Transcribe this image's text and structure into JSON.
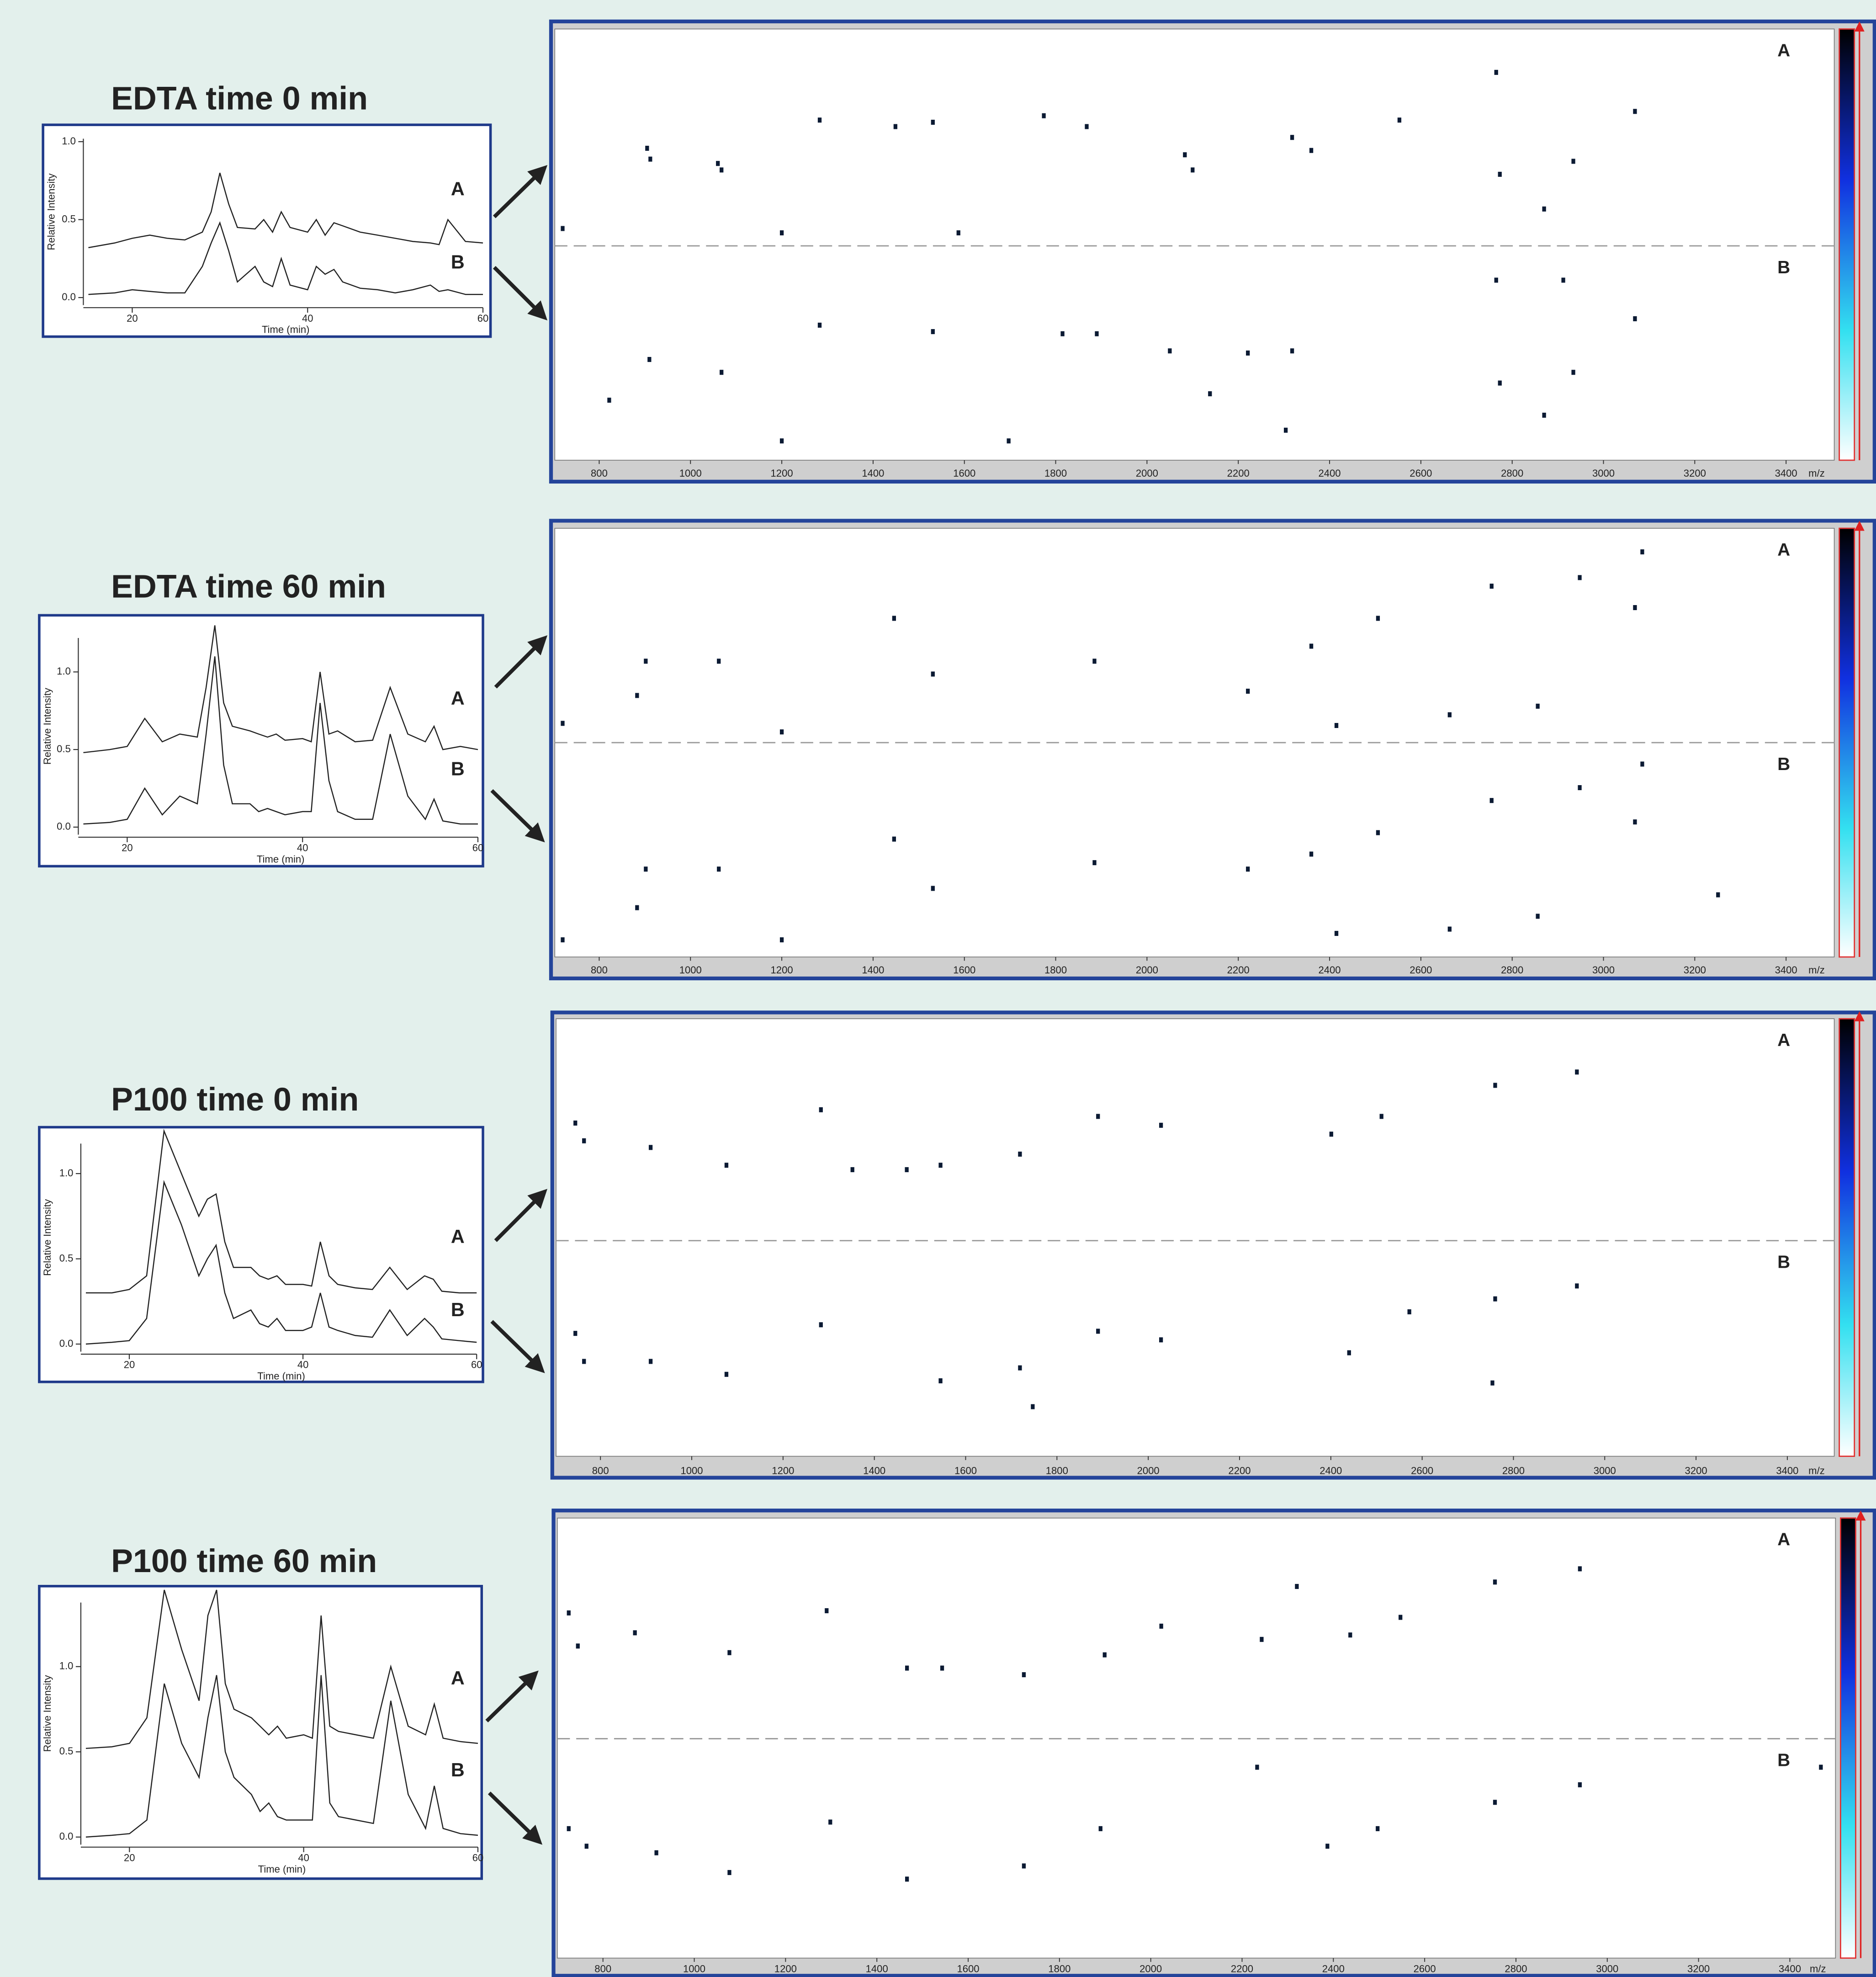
{
  "chart_data": [
    {
      "type": "line",
      "title": "EDTA time 0 min",
      "xlabel": "Time (min)",
      "ylabel": "Relative Intensity",
      "x": [
        15,
        18,
        20,
        22,
        24,
        26,
        28,
        29,
        30,
        31,
        32,
        34,
        35,
        36,
        37,
        38,
        40,
        41,
        42,
        43,
        44,
        46,
        48,
        50,
        52,
        54,
        55,
        56,
        58,
        60
      ],
      "xlim": [
        15,
        60
      ],
      "xticks": [
        20,
        40,
        60
      ],
      "ylim": [
        0,
        1.1
      ],
      "yticks": [
        {
          "value": 0,
          "label": "0.0"
        },
        0.5,
        {
          "value": 1,
          "label": "1.0"
        }
      ],
      "series": [
        {
          "name": "A",
          "color": "#222222",
          "values": [
            0.32,
            0.35,
            0.38,
            0.4,
            0.38,
            0.37,
            0.42,
            0.55,
            0.8,
            0.6,
            0.45,
            0.44,
            0.5,
            0.42,
            0.55,
            0.45,
            0.42,
            0.5,
            0.4,
            0.48,
            0.46,
            0.42,
            0.4,
            0.38,
            0.36,
            0.35,
            0.34,
            0.5,
            0.36,
            0.35
          ]
        },
        {
          "name": "B",
          "color": "#222222",
          "values": [
            0.02,
            0.03,
            0.05,
            0.04,
            0.03,
            0.03,
            0.2,
            0.35,
            0.48,
            0.3,
            0.1,
            0.2,
            0.1,
            0.07,
            0.25,
            0.08,
            0.05,
            0.2,
            0.15,
            0.18,
            0.1,
            0.06,
            0.05,
            0.03,
            0.05,
            0.08,
            0.04,
            0.05,
            0.02,
            0.02
          ]
        }
      ]
    },
    {
      "type": "scatter",
      "xlabel": "m/z",
      "xlim": [
        700,
        3500
      ],
      "xticks": [
        800,
        1000,
        1200,
        1400,
        1600,
        1800,
        2000,
        2200,
        2400,
        2600,
        2800,
        3000,
        3200,
        3400
      ],
      "ylim": [
        0,
        1
      ],
      "series": [
        {
          "name": "A",
          "color": "#0b1a33",
          "x": [
            720,
            905,
            912,
            1060,
            1068,
            1283,
            1449,
            1531,
            1774,
            1868,
            2083,
            2100,
            2318,
            2360,
            2553,
            2765,
            2773,
            2870,
            2934,
            3069,
            1200,
            1587
          ],
          "values": [
            0.08,
            0.45,
            0.4,
            0.38,
            0.35,
            0.58,
            0.55,
            0.57,
            0.6,
            0.55,
            0.42,
            0.35,
            0.5,
            0.44,
            0.58,
            0.8,
            0.33,
            0.17,
            0.39,
            0.62,
            0.06,
            0.06
          ]
        },
        {
          "name": "B",
          "color": "#0b1a33",
          "x": [
            910,
            1068,
            1283,
            1531,
            1815,
            1890,
            2050,
            2221,
            2318,
            2765,
            2912,
            3069,
            2934,
            2773,
            2870,
            1200,
            1697,
            2304,
            2138,
            822
          ],
          "values": [
            0.47,
            0.41,
            0.63,
            0.6,
            0.59,
            0.59,
            0.51,
            0.5,
            0.51,
            0.84,
            0.84,
            0.66,
            0.41,
            0.36,
            0.21,
            0.09,
            0.09,
            0.14,
            0.31,
            0.28
          ]
        }
      ]
    },
    {
      "type": "line",
      "title": "EDTA time 60 min",
      "xlabel": "Time (min)",
      "ylabel": "Relative Intensity",
      "x": [
        15,
        18,
        20,
        22,
        24,
        26,
        28,
        29,
        30,
        31,
        32,
        34,
        35,
        36,
        37,
        38,
        40,
        41,
        42,
        43,
        44,
        46,
        48,
        50,
        52,
        54,
        55,
        56,
        58,
        60
      ],
      "xlim": [
        15,
        60
      ],
      "xticks": [
        20,
        40,
        60
      ],
      "ylim": [
        0,
        1.3
      ],
      "yticks": [
        {
          "value": 0,
          "label": "0.0"
        },
        0.5,
        {
          "value": 1,
          "label": "1.0"
        }
      ],
      "series": [
        {
          "name": "A",
          "color": "#222222",
          "values": [
            0.48,
            0.5,
            0.52,
            0.7,
            0.55,
            0.6,
            0.58,
            0.9,
            1.3,
            0.8,
            0.65,
            0.62,
            0.6,
            0.58,
            0.6,
            0.56,
            0.57,
            0.55,
            1.0,
            0.6,
            0.62,
            0.55,
            0.56,
            0.9,
            0.6,
            0.55,
            0.65,
            0.5,
            0.52,
            0.5
          ]
        },
        {
          "name": "B",
          "color": "#222222",
          "values": [
            0.02,
            0.03,
            0.05,
            0.25,
            0.08,
            0.2,
            0.15,
            0.6,
            1.1,
            0.4,
            0.15,
            0.15,
            0.1,
            0.12,
            0.1,
            0.08,
            0.1,
            0.1,
            0.8,
            0.3,
            0.1,
            0.05,
            0.05,
            0.6,
            0.2,
            0.05,
            0.18,
            0.04,
            0.02,
            0.02
          ]
        }
      ]
    },
    {
      "type": "scatter",
      "xlabel": "m/z",
      "xlim": [
        700,
        3500
      ],
      "xticks": [
        800,
        1000,
        1200,
        1400,
        1600,
        1800,
        2000,
        2200,
        2400,
        2600,
        2800,
        3000,
        3200,
        3400
      ],
      "ylim": [
        0,
        1
      ],
      "series": [
        {
          "name": "A",
          "color": "#0b1a33",
          "x": [
            902,
            1062,
            1446,
            1531,
            2755,
            2948,
            3069,
            3085,
            2360,
            2506,
            2663,
            2856,
            883,
            1885,
            2221,
            2415,
            1200,
            720
          ],
          "values": [
            0.38,
            0.38,
            0.58,
            0.32,
            0.73,
            0.77,
            0.63,
            0.89,
            0.45,
            0.58,
            0.13,
            0.17,
            0.22,
            0.38,
            0.24,
            0.08,
            0.05,
            0.09
          ]
        },
        {
          "name": "B",
          "color": "#0b1a33",
          "x": [
            902,
            1062,
            1446,
            1531,
            2755,
            2948,
            3069,
            3085,
            2360,
            2506,
            2663,
            2856,
            883,
            1885,
            2221,
            2415,
            3251,
            1200,
            720
          ],
          "values": [
            0.41,
            0.41,
            0.55,
            0.32,
            0.73,
            0.79,
            0.63,
            0.9,
            0.48,
            0.58,
            0.13,
            0.19,
            0.23,
            0.44,
            0.41,
            0.11,
            0.29,
            0.08,
            0.08
          ]
        }
      ]
    },
    {
      "type": "line",
      "title": "P100 time 0 min",
      "xlabel": "Time (min)",
      "ylabel": "Relative Intensity",
      "x": [
        15,
        18,
        20,
        22,
        24,
        26,
        28,
        29,
        30,
        31,
        32,
        34,
        35,
        36,
        37,
        38,
        40,
        41,
        42,
        43,
        44,
        46,
        48,
        50,
        52,
        54,
        55,
        56,
        58,
        60
      ],
      "xlim": [
        15,
        60
      ],
      "xticks": [
        20,
        40,
        60
      ],
      "ylim": [
        0,
        1.25
      ],
      "yticks": [
        {
          "value": 0,
          "label": "0.0"
        },
        0.5,
        {
          "value": 1,
          "label": "1.0"
        }
      ],
      "series": [
        {
          "name": "A",
          "color": "#222222",
          "values": [
            0.3,
            0.3,
            0.32,
            0.4,
            1.25,
            1.0,
            0.75,
            0.85,
            0.88,
            0.6,
            0.45,
            0.45,
            0.4,
            0.38,
            0.4,
            0.35,
            0.35,
            0.34,
            0.6,
            0.4,
            0.35,
            0.33,
            0.32,
            0.45,
            0.32,
            0.4,
            0.38,
            0.31,
            0.3,
            0.3
          ]
        },
        {
          "name": "B",
          "color": "#222222",
          "values": [
            0,
            0.01,
            0.02,
            0.15,
            0.95,
            0.7,
            0.4,
            0.5,
            0.58,
            0.3,
            0.15,
            0.2,
            0.12,
            0.1,
            0.15,
            0.08,
            0.08,
            0.1,
            0.3,
            0.1,
            0.08,
            0.05,
            0.04,
            0.2,
            0.05,
            0.15,
            0.1,
            0.03,
            0.02,
            0.01
          ]
        }
      ]
    },
    {
      "type": "scatter",
      "xlabel": "m/z",
      "xlim": [
        700,
        3500
      ],
      "xticks": [
        800,
        1000,
        1200,
        1400,
        1600,
        1800,
        2000,
        2200,
        2400,
        2600,
        2800,
        3000,
        3200,
        3400
      ],
      "ylim": [
        0,
        1
      ],
      "series": [
        {
          "name": "A",
          "color": "#0b1a33",
          "x": [
            745,
            764,
            910,
            1076,
            1283,
            1545,
            1719,
            1890,
            2028,
            2401,
            2511,
            2760,
            2939,
            1352,
            1471
          ],
          "values": [
            0.53,
            0.45,
            0.42,
            0.34,
            0.59,
            0.34,
            0.39,
            0.56,
            0.52,
            0.48,
            0.56,
            0.7,
            0.76,
            0.32,
            0.32
          ]
        },
        {
          "name": "B",
          "color": "#0b1a33",
          "x": [
            745,
            764,
            910,
            1076,
            1283,
            1545,
            1719,
            1890,
            2028,
            2440,
            2572,
            2760,
            2939,
            2754,
            1747
          ],
          "values": [
            0.57,
            0.44,
            0.44,
            0.38,
            0.61,
            0.35,
            0.41,
            0.58,
            0.54,
            0.48,
            0.67,
            0.73,
            0.79,
            0.34,
            0.23
          ]
        }
      ]
    },
    {
      "type": "line",
      "title": "P100 time 60 min",
      "xlabel": "Time (min)",
      "ylabel": "Relative Intensity",
      "x": [
        15,
        18,
        20,
        22,
        24,
        26,
        28,
        29,
        30,
        31,
        32,
        34,
        35,
        36,
        37,
        38,
        40,
        41,
        42,
        43,
        44,
        46,
        48,
        50,
        52,
        54,
        55,
        56,
        58,
        60
      ],
      "xlim": [
        15,
        60
      ],
      "xticks": [
        20,
        40,
        60
      ],
      "ylim": [
        0,
        1.45
      ],
      "yticks": [
        {
          "value": 0,
          "label": "0.0"
        },
        0.5,
        {
          "value": 1,
          "label": "1.0"
        }
      ],
      "series": [
        {
          "name": "A",
          "color": "#222222",
          "values": [
            0.52,
            0.53,
            0.55,
            0.7,
            1.45,
            1.1,
            0.8,
            1.3,
            1.45,
            0.9,
            0.75,
            0.7,
            0.65,
            0.6,
            0.65,
            0.58,
            0.6,
            0.58,
            1.3,
            0.65,
            0.62,
            0.6,
            0.58,
            1.0,
            0.65,
            0.6,
            0.78,
            0.58,
            0.56,
            0.55
          ]
        },
        {
          "name": "B",
          "color": "#222222",
          "values": [
            0,
            0.01,
            0.02,
            0.1,
            0.9,
            0.55,
            0.35,
            0.7,
            0.95,
            0.5,
            0.35,
            0.25,
            0.15,
            0.2,
            0.12,
            0.1,
            0.1,
            0.1,
            0.95,
            0.2,
            0.12,
            0.1,
            0.08,
            0.8,
            0.25,
            0.05,
            0.3,
            0.05,
            0.02,
            0.01
          ]
        }
      ]
    },
    {
      "type": "scatter",
      "xlabel": "m/z",
      "xlim": [
        700,
        3500
      ],
      "xticks": [
        800,
        1000,
        1200,
        1400,
        1600,
        1800,
        2000,
        2200,
        2400,
        2600,
        2800,
        3000,
        3200,
        3400
      ],
      "ylim": [
        0,
        1
      ],
      "series": [
        {
          "name": "A",
          "color": "#0b1a33",
          "x": [
            725,
            745,
            870,
            1077,
            1290,
            1543,
            1722,
            1899,
            2023,
            2243,
            2437,
            2547,
            2754,
            2940,
            2320,
            1466
          ],
          "values": [
            0.57,
            0.42,
            0.48,
            0.39,
            0.58,
            0.32,
            0.29,
            0.38,
            0.51,
            0.45,
            0.47,
            0.55,
            0.71,
            0.77,
            0.69,
            0.32
          ]
        },
        {
          "name": "B",
          "color": "#0b1a33",
          "x": [
            725,
            764,
            917,
            1077,
            1298,
            1466,
            1722,
            1890,
            2387,
            2754,
            2940,
            3468,
            2233,
            2497
          ],
          "values": [
            0.59,
            0.51,
            0.48,
            0.39,
            0.62,
            0.36,
            0.42,
            0.59,
            0.51,
            0.71,
            0.79,
            0.87,
            0.87,
            0.59
          ]
        }
      ]
    }
  ]
}
